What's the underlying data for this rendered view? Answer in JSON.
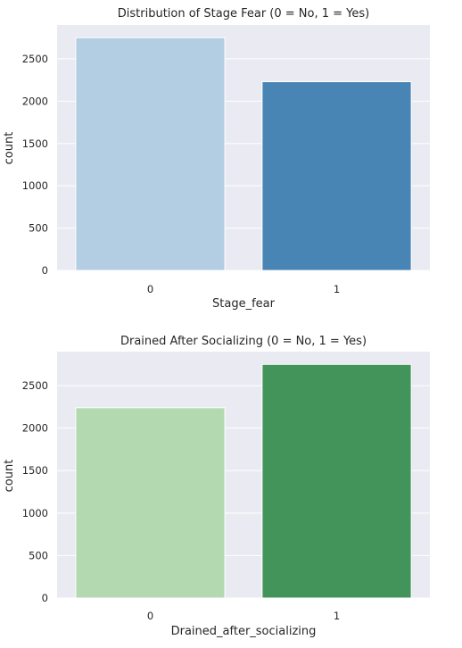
{
  "chart_data": [
    {
      "type": "bar",
      "title": "Distribution of Stage Fear (0 = No, 1 = Yes)",
      "xlabel": "Stage_fear",
      "ylabel": "count",
      "categories": [
        "0",
        "1"
      ],
      "values": [
        2750,
        2230
      ],
      "colors": [
        "#b3cde3",
        "#4884b4"
      ],
      "ylim": [
        0,
        2900
      ],
      "yticks": [
        0,
        500,
        1000,
        1500,
        2000,
        2500
      ],
      "grid": true,
      "legend": "none"
    },
    {
      "type": "bar",
      "title": "Drained After Socializing (0 = No, 1 = Yes)",
      "xlabel": "Drained_after_socializing",
      "ylabel": "count",
      "categories": [
        "0",
        "1"
      ],
      "values": [
        2240,
        2750
      ],
      "colors": [
        "#b3d9b0",
        "#43945a"
      ],
      "ylim": [
        0,
        2900
      ],
      "yticks": [
        0,
        500,
        1000,
        1500,
        2000,
        2500
      ],
      "grid": true,
      "legend": "none"
    }
  ]
}
